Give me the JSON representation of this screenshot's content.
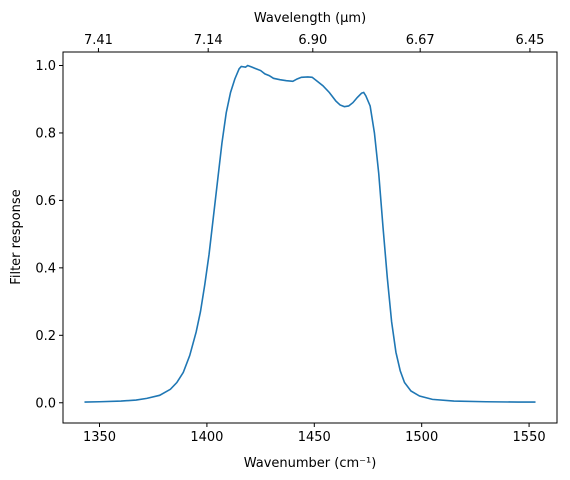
{
  "chart_data": {
    "type": "line",
    "xlabel": "Wavenumber (cm⁻¹)",
    "ylabel": "Filter response",
    "top_xlabel": "Wavelength (μm)",
    "xlim": [
      1333,
      1563
    ],
    "ylim": [
      -0.06,
      1.04
    ],
    "grid": false,
    "color": "#1f77b4",
    "x_ticks": [
      1350,
      1400,
      1450,
      1500,
      1550
    ],
    "y_ticks": [
      0.0,
      0.2,
      0.4,
      0.6,
      0.8,
      1.0
    ],
    "top_ticks": [
      {
        "label": "7.41",
        "wavenumber": 1349.5
      },
      {
        "label": "7.14",
        "wavenumber": 1400.6
      },
      {
        "label": "6.90",
        "wavenumber": 1449.3
      },
      {
        "label": "6.67",
        "wavenumber": 1499.3
      },
      {
        "label": "6.45",
        "wavenumber": 1550.4
      }
    ],
    "series": [
      {
        "points": [
          [
            1343,
            0.002
          ],
          [
            1350,
            0.003
          ],
          [
            1360,
            0.005
          ],
          [
            1367,
            0.008
          ],
          [
            1372,
            0.013
          ],
          [
            1378,
            0.022
          ],
          [
            1383,
            0.04
          ],
          [
            1386,
            0.06
          ],
          [
            1389,
            0.09
          ],
          [
            1392,
            0.14
          ],
          [
            1395,
            0.21
          ],
          [
            1397,
            0.27
          ],
          [
            1399,
            0.35
          ],
          [
            1401,
            0.44
          ],
          [
            1403,
            0.55
          ],
          [
            1405,
            0.66
          ],
          [
            1407,
            0.77
          ],
          [
            1409,
            0.86
          ],
          [
            1411,
            0.92
          ],
          [
            1413,
            0.96
          ],
          [
            1415,
            0.99
          ],
          [
            1416,
            0.997
          ],
          [
            1418,
            0.995
          ],
          [
            1419,
            1.0
          ],
          [
            1421,
            0.995
          ],
          [
            1423,
            0.99
          ],
          [
            1425,
            0.985
          ],
          [
            1427,
            0.975
          ],
          [
            1429,
            0.97
          ],
          [
            1431,
            0.962
          ],
          [
            1434,
            0.958
          ],
          [
            1437,
            0.955
          ],
          [
            1440,
            0.953
          ],
          [
            1442,
            0.96
          ],
          [
            1444,
            0.965
          ],
          [
            1447,
            0.966
          ],
          [
            1449,
            0.965
          ],
          [
            1451,
            0.955
          ],
          [
            1454,
            0.94
          ],
          [
            1457,
            0.92
          ],
          [
            1460,
            0.895
          ],
          [
            1462,
            0.883
          ],
          [
            1464,
            0.878
          ],
          [
            1466,
            0.88
          ],
          [
            1468,
            0.89
          ],
          [
            1470,
            0.905
          ],
          [
            1472,
            0.918
          ],
          [
            1473,
            0.92
          ],
          [
            1474,
            0.91
          ],
          [
            1476,
            0.88
          ],
          [
            1478,
            0.8
          ],
          [
            1480,
            0.68
          ],
          [
            1482,
            0.52
          ],
          [
            1484,
            0.37
          ],
          [
            1486,
            0.24
          ],
          [
            1488,
            0.15
          ],
          [
            1490,
            0.095
          ],
          [
            1492,
            0.06
          ],
          [
            1495,
            0.035
          ],
          [
            1499,
            0.02
          ],
          [
            1505,
            0.01
          ],
          [
            1515,
            0.005
          ],
          [
            1530,
            0.003
          ],
          [
            1545,
            0.002
          ],
          [
            1553,
            0.002
          ]
        ]
      }
    ]
  }
}
